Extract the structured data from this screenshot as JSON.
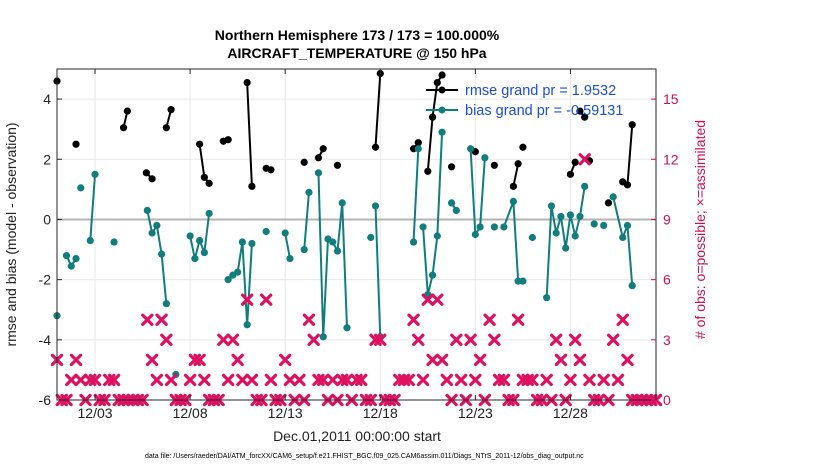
{
  "chart_data": {
    "type": "line",
    "title": "Northern Hemisphere 173 / 173 = 100.000%",
    "subtitle": "AIRCRAFT_TEMPERATURE @ 150 hPa",
    "xlabel": "Dec.01,2011 00:00:00 start",
    "ylabel": "rmse and bias (model - observation)",
    "ylabel_right": "# of obs: o=possible; ×=assimilated",
    "footer": "data file: /Users/raeder/DAI/ATM_forcXX/CAM6_setup/f.e21.FHIST_BGC.f09_025.CAM6assim.011/Diags_NTrS_2011-12/obs_diag_output.nc",
    "xlim": [
      0,
      31.5
    ],
    "ylim": [
      -6,
      5
    ],
    "ylim_right": [
      0,
      16.5
    ],
    "x_ticks": [
      2,
      7,
      12,
      17,
      22,
      27
    ],
    "x_tick_labels": [
      "12/03",
      "12/08",
      "12/13",
      "12/18",
      "12/23",
      "12/28"
    ],
    "y_ticks": [
      -6,
      -4,
      -2,
      0,
      2,
      4
    ],
    "y_tick_labels": [
      "-6",
      "-4",
      "-2",
      "0",
      "2",
      "4"
    ],
    "y_right_ticks": [
      0,
      3,
      6,
      9,
      12,
      15
    ],
    "y_right_tick_labels": [
      "0",
      "3",
      "6",
      "9",
      "12",
      "15"
    ],
    "grid": true,
    "zero_line": true,
    "legend_position": "top-right",
    "colors": {
      "rmse": "#000000",
      "bias": "#117d7d",
      "obs": "#dd1160",
      "zero": "#b4b4b4",
      "legend_text": "#1a4fd6",
      "right_axis": "#cc1155"
    },
    "series": [
      {
        "name": "rmse grand pr = 1.9532",
        "color": "#000000",
        "segments": [
          [
            [
              0.0,
              4.6
            ]
          ],
          [
            [
              1.0,
              2.5
            ]
          ],
          [
            [
              3.7,
              3.6
            ],
            [
              3.5,
              3.05
            ]
          ],
          [
            [
              4.7,
              1.55
            ],
            [
              5.0,
              1.35
            ]
          ],
          [
            [
              5.75,
              3.05
            ],
            [
              6.0,
              3.65
            ]
          ],
          [
            [
              7.5,
              2.5
            ],
            [
              7.75,
              1.4
            ],
            [
              8.0,
              1.2
            ]
          ],
          [
            [
              8.75,
              2.6
            ],
            [
              9.0,
              2.65
            ]
          ],
          [
            [
              10.0,
              4.55
            ],
            [
              10.25,
              1.1
            ]
          ],
          [
            [
              11.0,
              1.7
            ],
            [
              11.25,
              1.65
            ]
          ],
          [
            [
              13.0,
              1.9
            ]
          ],
          [
            [
              13.75,
              2.05
            ],
            [
              14.0,
              2.35
            ]
          ],
          [
            [
              14.75,
              1.8
            ]
          ],
          [
            [
              16.75,
              2.4
            ],
            [
              17.0,
              4.85
            ]
          ],
          [
            [
              18.75,
              2.35
            ],
            [
              19.0,
              2.55
            ]
          ],
          [
            [
              19.5,
              1.6
            ],
            [
              19.75,
              3.4
            ],
            [
              20.0,
              4.55
            ],
            [
              20.25,
              4.8
            ]
          ],
          [
            [
              20.75,
              1.75
            ]
          ],
          [
            [
              22.0,
              2.25
            ]
          ],
          [
            [
              23.0,
              1.8
            ]
          ],
          [
            [
              24.0,
              1.1
            ],
            [
              24.25,
              1.85
            ]
          ],
          [
            [
              24.5,
              2.4
            ]
          ],
          [
            [
              27.0,
              1.5
            ],
            [
              27.25,
              1.9
            ]
          ],
          [
            [
              27.5,
              3.6
            ],
            [
              27.75,
              3.4
            ]
          ],
          [
            [
              28.0,
              1.95
            ]
          ],
          [
            [
              29.0,
              0.55
            ]
          ],
          [
            [
              29.75,
              1.25
            ],
            [
              30.0,
              1.15
            ],
            [
              30.25,
              3.15
            ]
          ]
        ]
      },
      {
        "name": "bias grand pr = -0.59131",
        "color": "#117d7d",
        "segments": [
          [
            [
              0.0,
              -3.2
            ]
          ],
          [
            [
              0.5,
              -1.2
            ],
            [
              0.75,
              -1.55
            ],
            [
              1.0,
              -1.3
            ]
          ],
          [
            [
              1.25,
              1.05
            ]
          ],
          [
            [
              1.75,
              -0.7
            ],
            [
              2.0,
              1.5
            ]
          ],
          [
            [
              3.0,
              -0.75
            ]
          ],
          [
            [
              4.75,
              0.3
            ],
            [
              5.0,
              -0.45
            ],
            [
              5.25,
              -0.2
            ],
            [
              5.5,
              -1.15
            ],
            [
              5.75,
              -2.8
            ]
          ],
          [
            [
              6.25,
              -5.15
            ]
          ],
          [
            [
              7.0,
              -0.55
            ],
            [
              7.25,
              -1.3
            ],
            [
              7.5,
              -0.7
            ],
            [
              7.75,
              -1.1
            ],
            [
              8.0,
              0.2
            ]
          ],
          [
            [
              9.0,
              -2.0
            ],
            [
              9.25,
              -1.85
            ],
            [
              9.5,
              -1.75
            ],
            [
              9.75,
              -0.75
            ],
            [
              10.0,
              -3.5
            ],
            [
              10.25,
              -0.8
            ]
          ],
          [
            [
              11.0,
              -0.4
            ]
          ],
          [
            [
              12.0,
              -0.45
            ],
            [
              12.25,
              -1.3
            ]
          ],
          [
            [
              13.0,
              -1.0
            ],
            [
              13.25,
              0.9
            ]
          ],
          [
            [
              13.75,
              1.55
            ],
            [
              14.0,
              -3.9
            ],
            [
              14.25,
              -0.65
            ],
            [
              14.5,
              -0.75
            ],
            [
              14.75,
              -1.05
            ],
            [
              15.0,
              0.55
            ],
            [
              15.25,
              -3.6
            ]
          ],
          [
            [
              16.5,
              -0.6
            ]
          ],
          [
            [
              16.75,
              0.45
            ],
            [
              17.0,
              -3.9
            ]
          ],
          [
            [
              18.75,
              -0.75
            ],
            [
              19.0,
              2.35
            ]
          ],
          [
            [
              19.25,
              -0.25
            ],
            [
              19.5,
              -2.5
            ],
            [
              19.75,
              -1.85
            ],
            [
              20.0,
              -0.55
            ],
            [
              20.25,
              2.9
            ]
          ],
          [
            [
              20.75,
              0.55
            ],
            [
              21.0,
              0.3
            ]
          ],
          [
            [
              21.75,
              2.35
            ],
            [
              22.0,
              -0.5
            ],
            [
              22.25,
              -0.25
            ],
            [
              22.5,
              2.05
            ]
          ],
          [
            [
              23.0,
              -0.25
            ]
          ],
          [
            [
              23.5,
              -0.25
            ],
            [
              24.0,
              0.6
            ],
            [
              24.25,
              -2.05
            ],
            [
              24.5,
              -2.05
            ]
          ],
          [
            [
              25.0,
              -0.6
            ]
          ],
          [
            [
              25.75,
              -2.6
            ],
            [
              26.0,
              0.45
            ],
            [
              26.25,
              -0.45
            ],
            [
              26.5,
              0.1
            ],
            [
              26.75,
              -0.95
            ],
            [
              27.0,
              0.15
            ],
            [
              27.25,
              -0.55
            ],
            [
              27.5,
              0.1
            ],
            [
              27.75,
              1.1
            ]
          ],
          [
            [
              28.25,
              -0.15
            ]
          ],
          [
            [
              28.75,
              -0.2
            ]
          ],
          [
            [
              29.25,
              0.75
            ],
            [
              29.75,
              -0.6
            ],
            [
              30.0,
              -0.2
            ],
            [
              30.25,
              -2.2
            ]
          ]
        ]
      },
      {
        "name": "# of obs assimilated",
        "color": "#dd1160",
        "axis": "right",
        "points": [
          [
            0.0,
            2
          ],
          [
            0.25,
            0
          ],
          [
            0.5,
            0
          ],
          [
            0.75,
            1
          ],
          [
            1.0,
            2
          ],
          [
            1.25,
            1
          ],
          [
            1.5,
            0
          ],
          [
            1.75,
            1
          ],
          [
            2.0,
            1
          ],
          [
            2.25,
            0
          ],
          [
            2.5,
            0
          ],
          [
            2.75,
            1
          ],
          [
            3.0,
            1
          ],
          [
            3.25,
            0
          ],
          [
            3.5,
            0
          ],
          [
            3.75,
            0
          ],
          [
            4.0,
            0
          ],
          [
            4.25,
            0
          ],
          [
            4.5,
            0
          ],
          [
            4.75,
            4
          ],
          [
            5.0,
            2
          ],
          [
            5.25,
            1
          ],
          [
            5.5,
            4
          ],
          [
            5.75,
            3
          ],
          [
            6.0,
            1
          ],
          [
            6.25,
            0
          ],
          [
            6.5,
            0
          ],
          [
            6.75,
            0
          ],
          [
            7.0,
            1
          ],
          [
            7.25,
            2
          ],
          [
            7.5,
            2
          ],
          [
            7.75,
            1
          ],
          [
            8.0,
            0
          ],
          [
            8.25,
            0
          ],
          [
            8.5,
            0
          ],
          [
            8.75,
            3
          ],
          [
            9.0,
            1
          ],
          [
            9.25,
            3
          ],
          [
            9.5,
            2
          ],
          [
            9.75,
            1
          ],
          [
            10.0,
            5
          ],
          [
            10.25,
            1
          ],
          [
            10.5,
            0
          ],
          [
            10.75,
            0
          ],
          [
            11.0,
            5
          ],
          [
            11.25,
            1
          ],
          [
            11.5,
            0
          ],
          [
            11.75,
            0
          ],
          [
            12.0,
            2
          ],
          [
            12.25,
            1
          ],
          [
            12.5,
            0
          ],
          [
            12.75,
            1
          ],
          [
            13.0,
            0
          ],
          [
            13.25,
            4
          ],
          [
            13.5,
            3
          ],
          [
            13.75,
            1
          ],
          [
            14.0,
            1
          ],
          [
            14.25,
            0
          ],
          [
            14.5,
            1
          ],
          [
            14.75,
            0
          ],
          [
            15.0,
            1
          ],
          [
            15.25,
            1
          ],
          [
            15.5,
            0
          ],
          [
            15.75,
            1
          ],
          [
            16.0,
            1
          ],
          [
            16.25,
            0
          ],
          [
            16.5,
            0
          ],
          [
            16.75,
            3
          ],
          [
            17.0,
            3
          ],
          [
            17.25,
            0
          ],
          [
            17.5,
            0
          ],
          [
            17.75,
            0
          ],
          [
            18.0,
            1
          ],
          [
            18.25,
            1
          ],
          [
            18.5,
            1
          ],
          [
            18.75,
            4
          ],
          [
            19.0,
            3
          ],
          [
            19.25,
            1
          ],
          [
            19.5,
            5
          ],
          [
            19.75,
            2
          ],
          [
            20.0,
            5
          ],
          [
            20.25,
            2
          ],
          [
            20.5,
            1
          ],
          [
            20.75,
            0
          ],
          [
            21.0,
            3
          ],
          [
            21.25,
            1
          ],
          [
            21.5,
            0
          ],
          [
            21.75,
            3
          ],
          [
            22.0,
            1
          ],
          [
            22.25,
            2
          ],
          [
            22.5,
            0
          ],
          [
            22.75,
            4
          ],
          [
            23.0,
            3
          ],
          [
            23.25,
            1
          ],
          [
            23.5,
            1
          ],
          [
            23.75,
            0
          ],
          [
            24.0,
            0
          ],
          [
            24.25,
            4
          ],
          [
            24.5,
            1
          ],
          [
            24.75,
            1
          ],
          [
            25.0,
            1
          ],
          [
            25.25,
            0
          ],
          [
            25.5,
            0
          ],
          [
            25.75,
            1
          ],
          [
            26.0,
            0
          ],
          [
            26.25,
            3
          ],
          [
            26.5,
            2
          ],
          [
            26.75,
            0
          ],
          [
            27.0,
            1
          ],
          [
            27.25,
            3
          ],
          [
            27.5,
            2
          ],
          [
            27.75,
            12
          ],
          [
            28.0,
            1
          ],
          [
            28.25,
            0
          ],
          [
            28.5,
            0
          ],
          [
            28.75,
            1
          ],
          [
            29.0,
            0
          ],
          [
            29.25,
            3
          ],
          [
            29.5,
            1
          ],
          [
            29.75,
            4
          ],
          [
            30.0,
            2
          ],
          [
            30.25,
            0
          ],
          [
            30.5,
            0
          ],
          [
            30.75,
            0
          ],
          [
            31.0,
            0
          ],
          [
            31.25,
            0
          ],
          [
            31.5,
            0
          ]
        ]
      }
    ]
  }
}
